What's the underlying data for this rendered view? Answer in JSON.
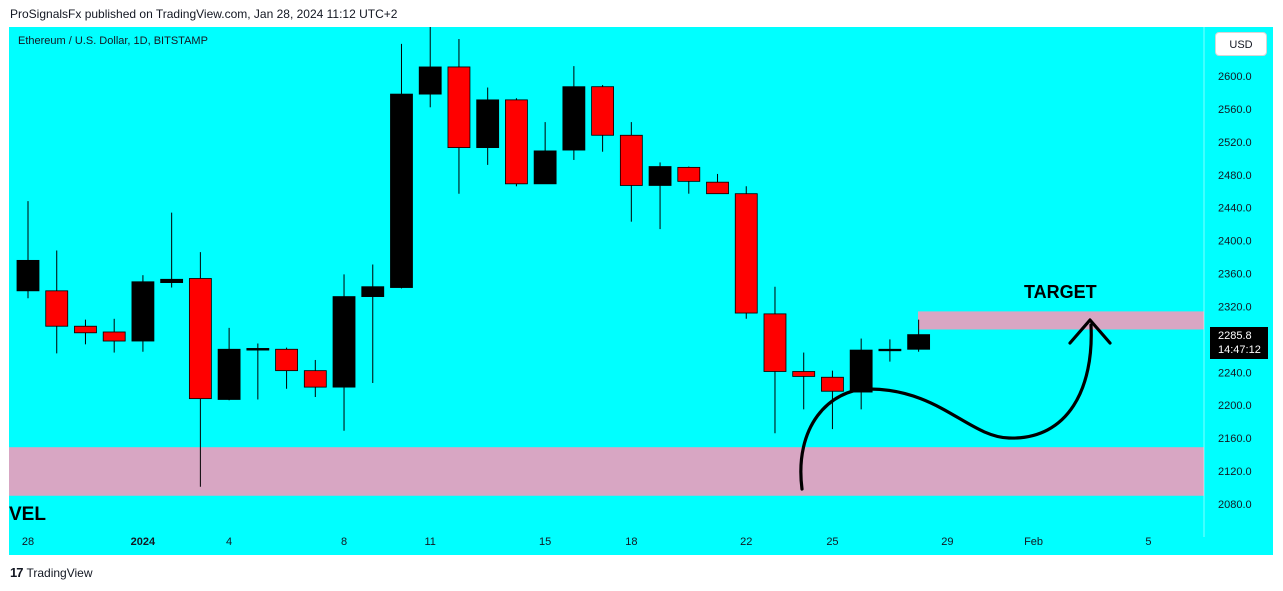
{
  "header": {
    "published_by": "ProSignalsFx published on TradingView.com, Jan 28, 2024 11:12 UTC+2"
  },
  "chart": {
    "symbol": "Ethereum / U.S. Dollar, 1D, BITSTAMP",
    "currency": "USD",
    "last_price": "2285.8",
    "countdown": "14:47:12",
    "target_label": "TARGET",
    "zone_label": "VEL",
    "colors": {
      "background": "#00ffff",
      "up": "#000000",
      "down": "#ff0000",
      "zone": "#d8a6c3"
    }
  },
  "footer": {
    "brand": "TradingView",
    "logo_icon": "tradingview-logo-icon"
  },
  "chart_data": {
    "type": "candlestick",
    "y_ticks": [
      "2600.0",
      "2560.0",
      "2520.0",
      "2480.0",
      "2440.0",
      "2400.0",
      "2360.0",
      "2320.0",
      "2280.0",
      "2240.0",
      "2200.0",
      "2160.0",
      "2120.0",
      "2080.0"
    ],
    "ylim": [
      2080,
      2600
    ],
    "x_tick_labels": [
      {
        "label": "28",
        "bar": 0
      },
      {
        "label": "2024",
        "bar": 4,
        "bold": true
      },
      {
        "label": "4",
        "bar": 7
      },
      {
        "label": "8",
        "bar": 11
      },
      {
        "label": "11",
        "bar": 14
      },
      {
        "label": "15",
        "bar": 18
      },
      {
        "label": "18",
        "bar": 21
      },
      {
        "label": "22",
        "bar": 25
      },
      {
        "label": "25",
        "bar": 28
      },
      {
        "label": "29",
        "bar": 32
      },
      {
        "label": "Feb",
        "bar": 35
      },
      {
        "label": "5",
        "bar": 39
      }
    ],
    "candles": [
      {
        "o": 2339,
        "h": 2448,
        "l": 2330,
        "c": 2376
      },
      {
        "o": 2339,
        "h": 2388,
        "l": 2263,
        "c": 2296
      },
      {
        "o": 2296,
        "h": 2304,
        "l": 2274,
        "c": 2288
      },
      {
        "o": 2289,
        "h": 2305,
        "l": 2264,
        "c": 2278
      },
      {
        "o": 2278,
        "h": 2358,
        "l": 2265,
        "c": 2350
      },
      {
        "o": 2349,
        "h": 2434,
        "l": 2343,
        "c": 2353
      },
      {
        "o": 2354,
        "h": 2386,
        "l": 2101,
        "c": 2208
      },
      {
        "o": 2207,
        "h": 2294,
        "l": 2206,
        "c": 2268
      },
      {
        "o": 2267,
        "h": 2275,
        "l": 2207,
        "c": 2269
      },
      {
        "o": 2268,
        "h": 2270,
        "l": 2220,
        "c": 2242
      },
      {
        "o": 2242,
        "h": 2255,
        "l": 2210,
        "c": 2222
      },
      {
        "o": 2222,
        "h": 2359,
        "l": 2169,
        "c": 2332
      },
      {
        "o": 2332,
        "h": 2371,
        "l": 2227,
        "c": 2344
      },
      {
        "o": 2343,
        "h": 2639,
        "l": 2342,
        "c": 2578
      },
      {
        "o": 2578,
        "h": 2661,
        "l": 2562,
        "c": 2611
      },
      {
        "o": 2611,
        "h": 2645,
        "l": 2457,
        "c": 2513
      },
      {
        "o": 2513,
        "h": 2586,
        "l": 2492,
        "c": 2571
      },
      {
        "o": 2571,
        "h": 2573,
        "l": 2466,
        "c": 2469
      },
      {
        "o": 2469,
        "h": 2544,
        "l": 2469,
        "c": 2509
      },
      {
        "o": 2510,
        "h": 2612,
        "l": 2498,
        "c": 2587
      },
      {
        "o": 2587,
        "h": 2589,
        "l": 2508,
        "c": 2528
      },
      {
        "o": 2528,
        "h": 2544,
        "l": 2423,
        "c": 2467
      },
      {
        "o": 2467,
        "h": 2495,
        "l": 2414,
        "c": 2490
      },
      {
        "o": 2489,
        "h": 2490,
        "l": 2457,
        "c": 2472
      },
      {
        "o": 2471,
        "h": 2481,
        "l": 2458,
        "c": 2457
      },
      {
        "o": 2457,
        "h": 2466,
        "l": 2305,
        "c": 2312
      },
      {
        "o": 2311,
        "h": 2344,
        "l": 2166,
        "c": 2241
      },
      {
        "o": 2241,
        "h": 2264,
        "l": 2195,
        "c": 2235
      },
      {
        "o": 2234,
        "h": 2242,
        "l": 2171,
        "c": 2217
      },
      {
        "o": 2216,
        "h": 2281,
        "l": 2195,
        "c": 2267
      },
      {
        "o": 2267,
        "h": 2280,
        "l": 2253,
        "c": 2268
      },
      {
        "o": 2268,
        "h": 2304,
        "l": 2265,
        "c": 2285.8
      }
    ],
    "zones": [
      {
        "name": "target",
        "from": 2292,
        "to": 2314
      },
      {
        "name": "support",
        "from": 2090,
        "to": 2149
      }
    ]
  }
}
